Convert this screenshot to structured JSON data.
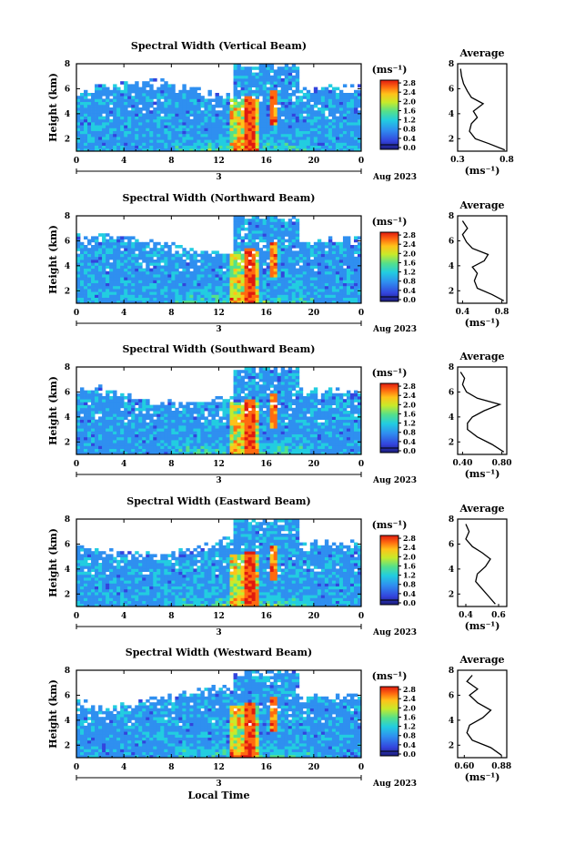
{
  "chart_data": [
    {
      "type": "heatmap",
      "title": "Spectral Width (Vertical Beam)",
      "ylabel": "Height (km)",
      "yticks": [
        "2",
        "4",
        "6",
        "8"
      ],
      "xticks": [
        "0",
        "4",
        "8",
        "12",
        "16",
        "20",
        "0"
      ],
      "xlim": [
        0,
        24
      ],
      "ylim": [
        1,
        8
      ],
      "date_label": "3",
      "month_label": "Aug 2023",
      "colorbar": {
        "unit": "(ms⁻¹)",
        "ticks": [
          "0.0",
          "0.4",
          "0.8",
          "1.2",
          "1.6",
          "2.0",
          "2.4",
          "2.8"
        ],
        "range": [
          0,
          3
        ]
      },
      "average": {
        "title": "Average",
        "xlabel": "(ms⁻¹)",
        "xticks": [
          "0.3",
          "0.8"
        ],
        "xlim": [
          0.3,
          0.8
        ],
        "yticks": [
          "2",
          "4",
          "6",
          "8"
        ],
        "profile": [
          [
            0.78,
            1.1
          ],
          [
            0.62,
            1.6
          ],
          [
            0.48,
            2.0
          ],
          [
            0.42,
            2.6
          ],
          [
            0.44,
            3.2
          ],
          [
            0.5,
            3.7
          ],
          [
            0.46,
            4.2
          ],
          [
            0.56,
            4.8
          ],
          [
            0.44,
            5.3
          ],
          [
            0.4,
            5.8
          ],
          [
            0.36,
            6.4
          ],
          [
            0.34,
            7.0
          ],
          [
            0.33,
            7.6
          ]
        ]
      }
    },
    {
      "type": "heatmap",
      "title": "Spectral Width (Northward Beam)",
      "ylabel": "Height (km)",
      "yticks": [
        "2",
        "4",
        "6",
        "8"
      ],
      "xticks": [
        "0",
        "4",
        "8",
        "12",
        "16",
        "20",
        "0"
      ],
      "xlim": [
        0,
        24
      ],
      "ylim": [
        1,
        8
      ],
      "date_label": "3",
      "month_label": "Aug 2023",
      "colorbar": {
        "unit": "(ms⁻¹)",
        "ticks": [
          "0.0",
          "0.4",
          "0.8",
          "1.2",
          "1.6",
          "2.0",
          "2.4",
          "2.8"
        ],
        "range": [
          0,
          3
        ]
      },
      "average": {
        "title": "Average",
        "xlabel": "(ms⁻¹)",
        "xticks": [
          "0.4",
          "0.8"
        ],
        "xlim": [
          0.35,
          0.85
        ],
        "yticks": [
          "2",
          "4",
          "6",
          "8"
        ],
        "profile": [
          [
            0.82,
            1.2
          ],
          [
            0.7,
            1.7
          ],
          [
            0.55,
            2.2
          ],
          [
            0.52,
            2.8
          ],
          [
            0.55,
            3.4
          ],
          [
            0.5,
            3.9
          ],
          [
            0.62,
            4.4
          ],
          [
            0.66,
            4.9
          ],
          [
            0.5,
            5.4
          ],
          [
            0.44,
            5.9
          ],
          [
            0.4,
            6.5
          ],
          [
            0.45,
            7.0
          ],
          [
            0.4,
            7.6
          ]
        ]
      }
    },
    {
      "type": "heatmap",
      "title": "Spectral Width (Southward Beam)",
      "ylabel": "Height (km)",
      "yticks": [
        "2",
        "4",
        "6",
        "8"
      ],
      "xticks": [
        "0",
        "4",
        "8",
        "12",
        "16",
        "20",
        "0"
      ],
      "xlim": [
        0,
        24
      ],
      "ylim": [
        1,
        8
      ],
      "date_label": "3",
      "month_label": "Aug 2023",
      "colorbar": {
        "unit": "(ms⁻¹)",
        "ticks": [
          "0.0",
          "0.4",
          "0.8",
          "1.2",
          "1.6",
          "2.0",
          "2.4",
          "2.8"
        ],
        "range": [
          0,
          3
        ]
      },
      "average": {
        "title": "Average",
        "xlabel": "(ms⁻¹)",
        "xticks": [
          "0.40",
          "0.80"
        ],
        "xlim": [
          0.35,
          0.85
        ],
        "yticks": [
          "2",
          "4",
          "6",
          "8"
        ],
        "profile": [
          [
            0.82,
            1.2
          ],
          [
            0.7,
            1.8
          ],
          [
            0.55,
            2.4
          ],
          [
            0.45,
            3.0
          ],
          [
            0.45,
            3.5
          ],
          [
            0.5,
            4.0
          ],
          [
            0.62,
            4.5
          ],
          [
            0.78,
            5.0
          ],
          [
            0.55,
            5.5
          ],
          [
            0.44,
            6.0
          ],
          [
            0.4,
            6.6
          ],
          [
            0.42,
            7.1
          ],
          [
            0.38,
            7.6
          ]
        ]
      }
    },
    {
      "type": "heatmap",
      "title": "Spectral Width (Eastward Beam)",
      "ylabel": "Height (km)",
      "yticks": [
        "2",
        "4",
        "6",
        "8"
      ],
      "xticks": [
        "0",
        "4",
        "8",
        "12",
        "16",
        "20",
        "0"
      ],
      "xlim": [
        0,
        24
      ],
      "ylim": [
        1,
        8
      ],
      "date_label": "3",
      "month_label": "Aug 2023",
      "colorbar": {
        "unit": "(ms⁻¹)",
        "ticks": [
          "0.0",
          "0.4",
          "0.8",
          "1.2",
          "1.6",
          "2.0",
          "2.4",
          "2.8"
        ],
        "range": [
          0,
          3
        ]
      },
      "average": {
        "title": "Average",
        "xlabel": "(ms⁻¹)",
        "xticks": [
          "0.4",
          "0.6"
        ],
        "xlim": [
          0.35,
          0.65
        ],
        "yticks": [
          "2",
          "4",
          "6",
          "8"
        ],
        "profile": [
          [
            0.58,
            1.2
          ],
          [
            0.54,
            1.8
          ],
          [
            0.5,
            2.4
          ],
          [
            0.46,
            3.0
          ],
          [
            0.47,
            3.6
          ],
          [
            0.52,
            4.2
          ],
          [
            0.55,
            4.8
          ],
          [
            0.5,
            5.3
          ],
          [
            0.44,
            5.8
          ],
          [
            0.4,
            6.4
          ],
          [
            0.42,
            7.0
          ],
          [
            0.4,
            7.6
          ]
        ]
      }
    },
    {
      "type": "heatmap",
      "title": "Spectral Width (Westward Beam)",
      "ylabel": "Height (km)",
      "xlabel": "Local Time",
      "yticks": [
        "2",
        "4",
        "6",
        "8"
      ],
      "xticks": [
        "0",
        "4",
        "8",
        "12",
        "16",
        "20",
        "0"
      ],
      "xlim": [
        0,
        24
      ],
      "ylim": [
        1,
        8
      ],
      "date_label": "3",
      "month_label": "Aug 2023",
      "colorbar": {
        "unit": "(ms⁻¹)",
        "ticks": [
          "0.0",
          "0.4",
          "0.8",
          "1.2",
          "1.6",
          "2.0",
          "2.4",
          "2.8"
        ],
        "range": [
          0,
          3
        ]
      },
      "average": {
        "title": "Average",
        "xlabel": "(ms⁻¹)",
        "xticks": [
          "0.60",
          "0.88"
        ],
        "xlim": [
          0.55,
          0.92
        ],
        "yticks": [
          "2",
          "4",
          "6",
          "8"
        ],
        "profile": [
          [
            0.88,
            1.2
          ],
          [
            0.8,
            1.8
          ],
          [
            0.66,
            2.4
          ],
          [
            0.62,
            3.0
          ],
          [
            0.64,
            3.6
          ],
          [
            0.74,
            4.2
          ],
          [
            0.8,
            4.8
          ],
          [
            0.7,
            5.4
          ],
          [
            0.64,
            6.0
          ],
          [
            0.7,
            6.5
          ],
          [
            0.62,
            7.1
          ],
          [
            0.66,
            7.6
          ]
        ]
      }
    }
  ]
}
